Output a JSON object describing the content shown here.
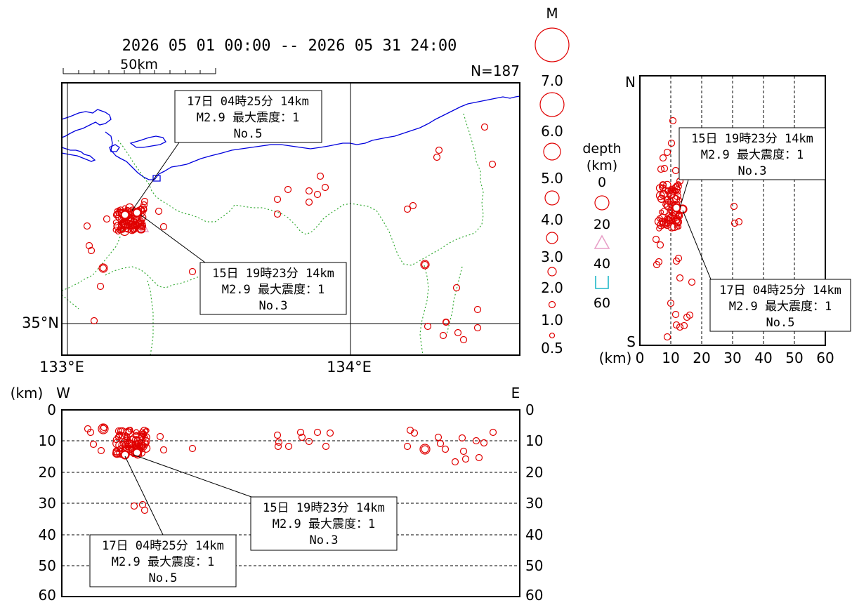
{
  "header": {
    "period": "2026 05 01 00:00 -- 2026 05 31 24:00",
    "scale_label": "50km",
    "count": "N=187"
  },
  "map": {
    "lon_labels": [
      "133°E",
      "134°E"
    ],
    "lat_labels": [
      "35°N"
    ],
    "triangle_symbol_color": "#e8a0c8"
  },
  "magnitude_legend": {
    "title": "M",
    "labels": [
      "7.0",
      "6.0",
      "5.0",
      "4.0",
      "3.0",
      "2.0",
      "1.0",
      "0.5"
    ],
    "circle_color": "#e00000"
  },
  "depth_legend": {
    "title_line1": "depth",
    "title_line2": "(km)",
    "labels": [
      "0",
      "20",
      "40",
      "60"
    ],
    "colors": [
      "#e00000",
      "#e8a0c8",
      "#20b8c8"
    ]
  },
  "ns_section": {
    "north_label": "N",
    "south_label": "S",
    "axis_unit": "(km)",
    "ticks": [
      "0",
      "10",
      "20",
      "30",
      "40",
      "50",
      "60"
    ]
  },
  "ew_section": {
    "west_label": "W",
    "east_label": "E",
    "axis_unit": "(km)",
    "ticks": [
      "0",
      "10",
      "20",
      "30",
      "40",
      "50",
      "60"
    ]
  },
  "events": [
    {
      "line1": "17日 04時25分 14km",
      "line2": "M2.9 最大震度：1",
      "line3": "No.5"
    },
    {
      "line1": "15日 19時23分 14km",
      "line2": "M2.9 最大震度：1",
      "line3": "No.3"
    }
  ]
}
